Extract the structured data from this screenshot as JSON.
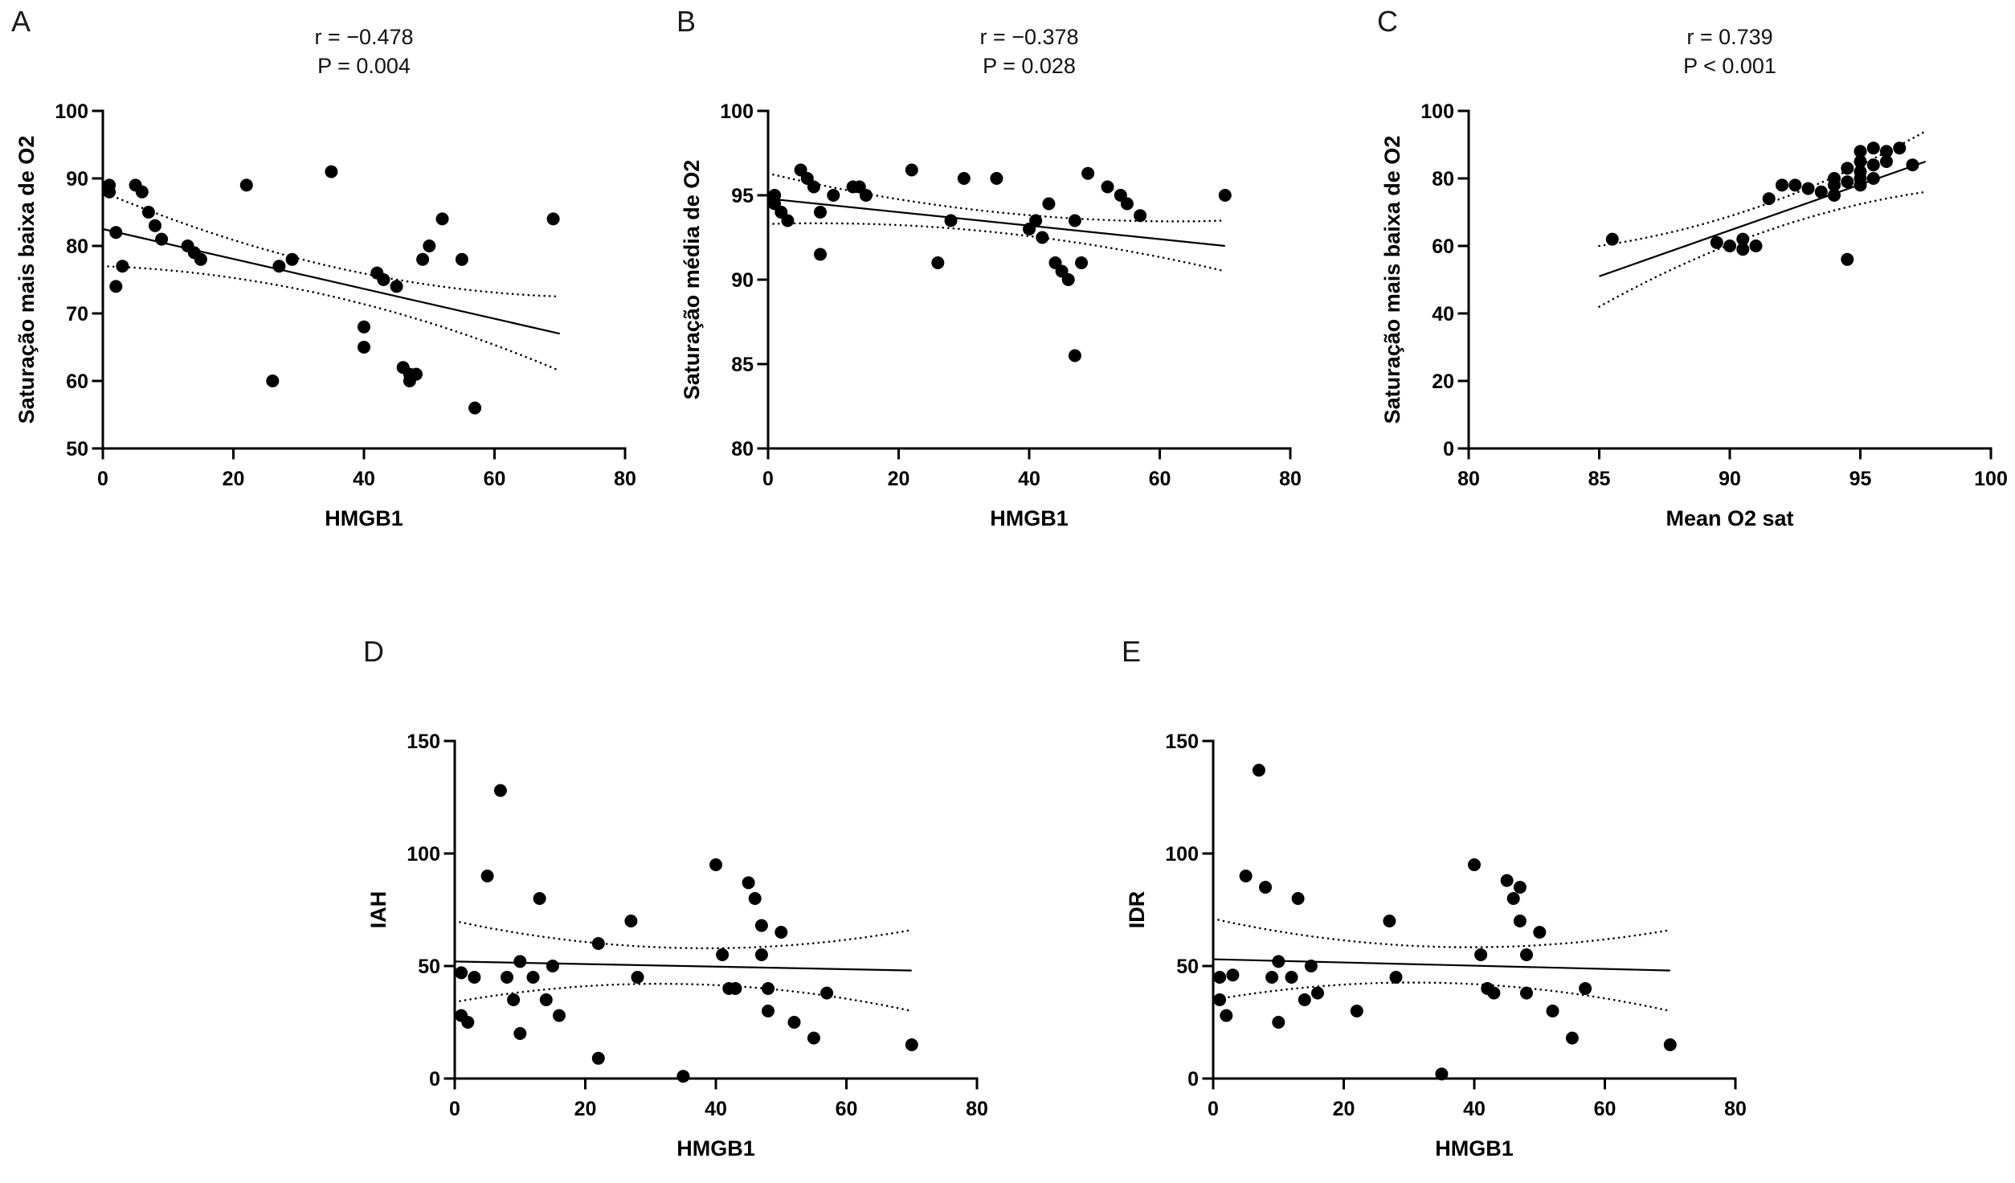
{
  "figure": {
    "background": "#ffffff",
    "accent": "#000000",
    "marker_color": "#000000"
  },
  "chart_data": [
    {
      "type": "scatter",
      "label": "A",
      "annotation": [
        "r = −0.478",
        "P = 0.004"
      ],
      "r": -0.478,
      "p": "0.004",
      "xlabel": "HMGB1",
      "ylabel": "Saturação mais baixa de O2",
      "xlim": [
        0,
        80
      ],
      "xticks": [
        0,
        20,
        40,
        60,
        80
      ],
      "ylim": [
        50,
        100
      ],
      "yticks": [
        50,
        60,
        70,
        80,
        90,
        100
      ],
      "grid": false,
      "legend": "none",
      "points": [
        [
          1,
          89
        ],
        [
          1,
          88
        ],
        [
          2,
          82
        ],
        [
          2,
          74
        ],
        [
          3,
          77
        ],
        [
          5,
          89
        ],
        [
          6,
          88
        ],
        [
          7,
          85
        ],
        [
          8,
          83
        ],
        [
          9,
          81
        ],
        [
          13,
          80
        ],
        [
          14,
          79
        ],
        [
          15,
          78
        ],
        [
          22,
          89
        ],
        [
          26,
          60
        ],
        [
          27,
          77
        ],
        [
          29,
          78
        ],
        [
          35,
          91
        ],
        [
          40,
          65
        ],
        [
          40,
          68
        ],
        [
          42,
          76
        ],
        [
          43,
          75
        ],
        [
          45,
          74
        ],
        [
          46,
          62
        ],
        [
          47,
          61
        ],
        [
          47,
          60
        ],
        [
          48,
          61
        ],
        [
          49,
          78
        ],
        [
          50,
          80
        ],
        [
          52,
          84
        ],
        [
          55,
          78
        ],
        [
          57,
          56
        ],
        [
          69,
          84
        ]
      ],
      "fit": {
        "x0": 0,
        "y0": 82.5,
        "x1": 70,
        "y1": 67.0
      },
      "band": {
        "mid": 2.2,
        "edge": 5.5
      }
    },
    {
      "type": "scatter",
      "label": "B",
      "annotation": [
        "r = −0.378",
        "P = 0.028"
      ],
      "r": -0.378,
      "p": "0.028",
      "xlabel": "HMGB1",
      "ylabel": "Saturação média de O2",
      "xlim": [
        0,
        80
      ],
      "xticks": [
        0,
        20,
        40,
        60,
        80
      ],
      "ylim": [
        80,
        100
      ],
      "yticks": [
        80,
        85,
        90,
        95,
        100
      ],
      "grid": false,
      "legend": "none",
      "points": [
        [
          1,
          95
        ],
        [
          1,
          94.5
        ],
        [
          2,
          94
        ],
        [
          3,
          93.5
        ],
        [
          5,
          96.5
        ],
        [
          6,
          96
        ],
        [
          7,
          95.5
        ],
        [
          8,
          94
        ],
        [
          8,
          91.5
        ],
        [
          10,
          95
        ],
        [
          13,
          95.5
        ],
        [
          14,
          95.5
        ],
        [
          15,
          95
        ],
        [
          22,
          96.5
        ],
        [
          26,
          91
        ],
        [
          28,
          93.5
        ],
        [
          30,
          96
        ],
        [
          35,
          96
        ],
        [
          40,
          93
        ],
        [
          41,
          93.5
        ],
        [
          42,
          92.5
        ],
        [
          43,
          94.5
        ],
        [
          44,
          91
        ],
        [
          45,
          90.5
        ],
        [
          46,
          90
        ],
        [
          47,
          85.5
        ],
        [
          47,
          93.5
        ],
        [
          48,
          91
        ],
        [
          49,
          96.3
        ],
        [
          52,
          95.5
        ],
        [
          54,
          95
        ],
        [
          55,
          94.5
        ],
        [
          57,
          93.8
        ],
        [
          70,
          95
        ]
      ],
      "fit": {
        "x0": 0,
        "y0": 94.8,
        "x1": 70,
        "y1": 92.0
      },
      "band": {
        "mid": 0.6,
        "edge": 1.5
      }
    },
    {
      "type": "scatter",
      "label": "C",
      "annotation": [
        "r = 0.739",
        "P < 0.001"
      ],
      "r": 0.739,
      "p": "< 0.001",
      "xlabel": "Mean O2 sat",
      "ylabel": "Saturação mais baixa de O2",
      "xlim": [
        80,
        100
      ],
      "xticks": [
        80,
        85,
        90,
        95,
        100
      ],
      "ylim": [
        0,
        100
      ],
      "yticks": [
        0,
        20,
        40,
        60,
        80,
        100
      ],
      "grid": false,
      "legend": "none",
      "points": [
        [
          85.5,
          62
        ],
        [
          89.5,
          61
        ],
        [
          90,
          60
        ],
        [
          90.5,
          62
        ],
        [
          90.5,
          59
        ],
        [
          91,
          60
        ],
        [
          91.5,
          74
        ],
        [
          92,
          78
        ],
        [
          92.5,
          78
        ],
        [
          93,
          77
        ],
        [
          93.5,
          76
        ],
        [
          94,
          80
        ],
        [
          94,
          78
        ],
        [
          94,
          75
        ],
        [
          94.5,
          83
        ],
        [
          94.5,
          79
        ],
        [
          94.5,
          56
        ],
        [
          95,
          88
        ],
        [
          95,
          85
        ],
        [
          95,
          82
        ],
        [
          95,
          80
        ],
        [
          95,
          78
        ],
        [
          95.5,
          89
        ],
        [
          95.5,
          84
        ],
        [
          95.5,
          80
        ],
        [
          96,
          88
        ],
        [
          96,
          85
        ],
        [
          96.5,
          89
        ],
        [
          97,
          84
        ]
      ],
      "fit": {
        "x0": 85,
        "y0": 51,
        "x1": 97.5,
        "y1": 85
      },
      "band": {
        "mid": 4,
        "edge": 9
      }
    },
    {
      "type": "scatter",
      "label": "D",
      "xlabel": "HMGB1",
      "ylabel": "IAH",
      "xlim": [
        0,
        80
      ],
      "xticks": [
        0,
        20,
        40,
        60,
        80
      ],
      "ylim": [
        0,
        150
      ],
      "yticks": [
        0,
        50,
        100,
        150
      ],
      "grid": false,
      "legend": "none",
      "points": [
        [
          1,
          47
        ],
        [
          1,
          28
        ],
        [
          2,
          25
        ],
        [
          3,
          45
        ],
        [
          5,
          90
        ],
        [
          7,
          128
        ],
        [
          8,
          45
        ],
        [
          9,
          35
        ],
        [
          10,
          52
        ],
        [
          10,
          20
        ],
        [
          12,
          45
        ],
        [
          13,
          80
        ],
        [
          14,
          35
        ],
        [
          15,
          50
        ],
        [
          16,
          28
        ],
        [
          22,
          9
        ],
        [
          22,
          60
        ],
        [
          27,
          70
        ],
        [
          28,
          45
        ],
        [
          35,
          1
        ],
        [
          40,
          95
        ],
        [
          41,
          55
        ],
        [
          42,
          40
        ],
        [
          43,
          40
        ],
        [
          45,
          87
        ],
        [
          46,
          80
        ],
        [
          47,
          68
        ],
        [
          47,
          55
        ],
        [
          48,
          40
        ],
        [
          48,
          30
        ],
        [
          50,
          65
        ],
        [
          52,
          25
        ],
        [
          55,
          18
        ],
        [
          57,
          38
        ],
        [
          70,
          15
        ]
      ],
      "fit": {
        "x0": 0,
        "y0": 52,
        "x1": 70,
        "y1": 48
      },
      "band": {
        "mid": 8,
        "edge": 18
      }
    },
    {
      "type": "scatter",
      "label": "E",
      "xlabel": "HMGB1",
      "ylabel": "IDR",
      "xlim": [
        0,
        80
      ],
      "xticks": [
        0,
        20,
        40,
        60,
        80
      ],
      "ylim": [
        0,
        150
      ],
      "yticks": [
        0,
        50,
        100,
        150
      ],
      "grid": false,
      "legend": "none",
      "points": [
        [
          1,
          45
        ],
        [
          1,
          35
        ],
        [
          2,
          28
        ],
        [
          3,
          46
        ],
        [
          5,
          90
        ],
        [
          7,
          137
        ],
        [
          8,
          85
        ],
        [
          9,
          45
        ],
        [
          10,
          52
        ],
        [
          10,
          25
        ],
        [
          12,
          45
        ],
        [
          13,
          80
        ],
        [
          14,
          35
        ],
        [
          15,
          50
        ],
        [
          16,
          38
        ],
        [
          22,
          30
        ],
        [
          27,
          70
        ],
        [
          28,
          45
        ],
        [
          35,
          2
        ],
        [
          40,
          95
        ],
        [
          41,
          55
        ],
        [
          42,
          40
        ],
        [
          43,
          38
        ],
        [
          45,
          88
        ],
        [
          46,
          80
        ],
        [
          47,
          85
        ],
        [
          47,
          70
        ],
        [
          48,
          55
        ],
        [
          48,
          38
        ],
        [
          50,
          65
        ],
        [
          52,
          30
        ],
        [
          55,
          18
        ],
        [
          57,
          40
        ],
        [
          70,
          15
        ]
      ],
      "fit": {
        "x0": 0,
        "y0": 53,
        "x1": 70,
        "y1": 48
      },
      "band": {
        "mid": 8,
        "edge": 18
      }
    }
  ]
}
